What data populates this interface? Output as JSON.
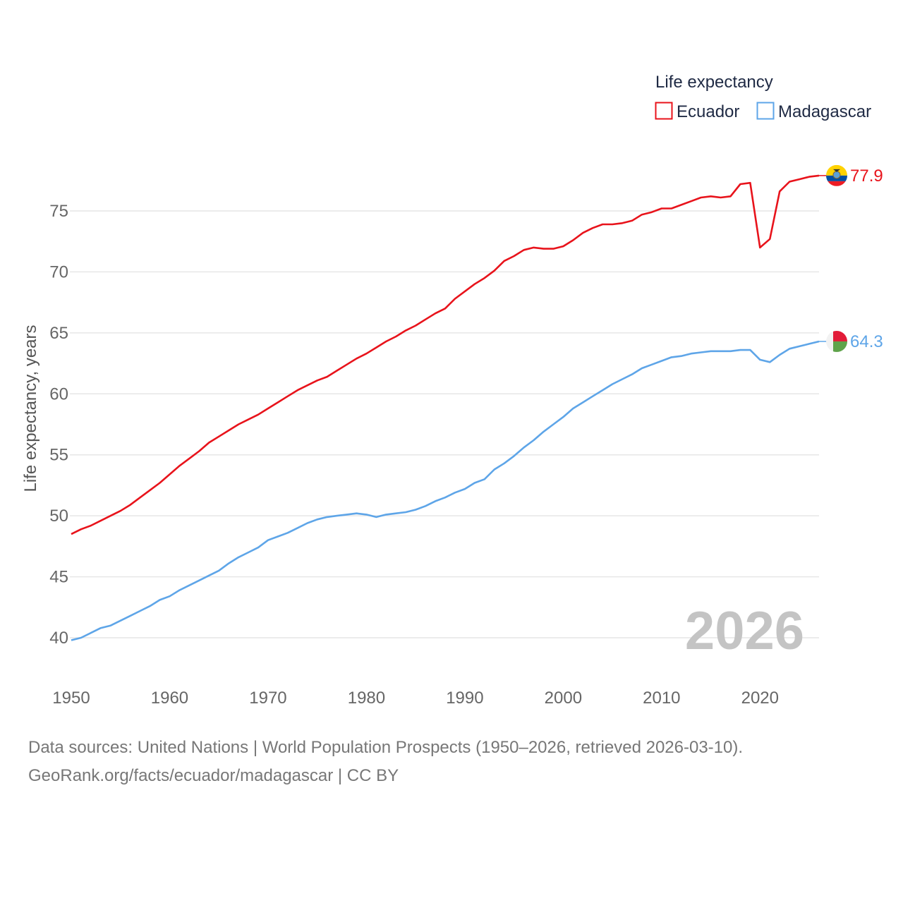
{
  "legend": {
    "title": "Life expectancy"
  },
  "year_label": "2026",
  "footer": {
    "line1": "Data sources: United Nations | World Population Prospects (1950–2026, retrieved 2026-03-10).",
    "line2": "GeoRank.org/facts/ecuador/madagascar | CC BY"
  },
  "chart_data": {
    "type": "line",
    "title": "Life expectancy",
    "xlabel": "",
    "ylabel": "Life expectancy, years",
    "xlim": [
      1950,
      2026
    ],
    "ylim": [
      38.5,
      79.5
    ],
    "x_ticks": [
      1950,
      1960,
      1970,
      1980,
      1990,
      2000,
      2010,
      2020
    ],
    "y_ticks": [
      40,
      45,
      50,
      55,
      60,
      65,
      70,
      75
    ],
    "grid": true,
    "legend_position": "top-right",
    "x": [
      1950,
      1951,
      1952,
      1953,
      1954,
      1955,
      1956,
      1957,
      1958,
      1959,
      1960,
      1961,
      1962,
      1963,
      1964,
      1965,
      1966,
      1967,
      1968,
      1969,
      1970,
      1971,
      1972,
      1973,
      1974,
      1975,
      1976,
      1977,
      1978,
      1979,
      1980,
      1981,
      1982,
      1983,
      1984,
      1985,
      1986,
      1987,
      1988,
      1989,
      1990,
      1991,
      1992,
      1993,
      1994,
      1995,
      1996,
      1997,
      1998,
      1999,
      2000,
      2001,
      2002,
      2003,
      2004,
      2005,
      2006,
      2007,
      2008,
      2009,
      2010,
      2011,
      2012,
      2013,
      2014,
      2015,
      2016,
      2017,
      2018,
      2019,
      2020,
      2021,
      2022,
      2023,
      2024,
      2025,
      2026
    ],
    "series": [
      {
        "name": "Ecuador",
        "color": "#e8131b",
        "end_label": "77.9",
        "flag": "ecuador-flag-icon",
        "values": [
          48.5,
          48.9,
          49.2,
          49.6,
          50.0,
          50.4,
          50.9,
          51.5,
          52.1,
          52.7,
          53.4,
          54.1,
          54.7,
          55.3,
          56.0,
          56.5,
          57.0,
          57.5,
          57.9,
          58.3,
          58.8,
          59.3,
          59.8,
          60.3,
          60.7,
          61.1,
          61.4,
          61.9,
          62.4,
          62.9,
          63.3,
          63.8,
          64.3,
          64.7,
          65.2,
          65.6,
          66.1,
          66.6,
          67.0,
          67.8,
          68.4,
          69.0,
          69.5,
          70.1,
          70.9,
          71.3,
          71.8,
          72.0,
          71.9,
          71.9,
          72.1,
          72.6,
          73.2,
          73.6,
          73.9,
          73.9,
          74.0,
          74.2,
          74.7,
          74.9,
          75.2,
          75.2,
          75.5,
          75.8,
          76.1,
          76.2,
          76.1,
          76.2,
          77.2,
          77.3,
          72.0,
          72.7,
          76.6,
          77.4,
          77.6,
          77.8,
          77.9
        ]
      },
      {
        "name": "Madagascar",
        "color": "#5ea5e8",
        "end_label": "64.3",
        "flag": "madagascar-flag-icon",
        "values": [
          39.8,
          40.0,
          40.4,
          40.8,
          41.0,
          41.4,
          41.8,
          42.2,
          42.6,
          43.1,
          43.4,
          43.9,
          44.3,
          44.7,
          45.1,
          45.5,
          46.1,
          46.6,
          47.0,
          47.4,
          48.0,
          48.3,
          48.6,
          49.0,
          49.4,
          49.7,
          49.9,
          50.0,
          50.1,
          50.2,
          50.1,
          49.9,
          50.1,
          50.2,
          50.3,
          50.5,
          50.8,
          51.2,
          51.5,
          51.9,
          52.2,
          52.7,
          53.0,
          53.8,
          54.3,
          54.9,
          55.6,
          56.2,
          56.9,
          57.5,
          58.1,
          58.8,
          59.3,
          59.8,
          60.3,
          60.8,
          61.2,
          61.6,
          62.1,
          62.4,
          62.7,
          63.0,
          63.1,
          63.3,
          63.4,
          63.5,
          63.5,
          63.5,
          63.6,
          63.6,
          62.8,
          62.6,
          63.2,
          63.7,
          63.9,
          64.1,
          64.3
        ]
      }
    ]
  }
}
